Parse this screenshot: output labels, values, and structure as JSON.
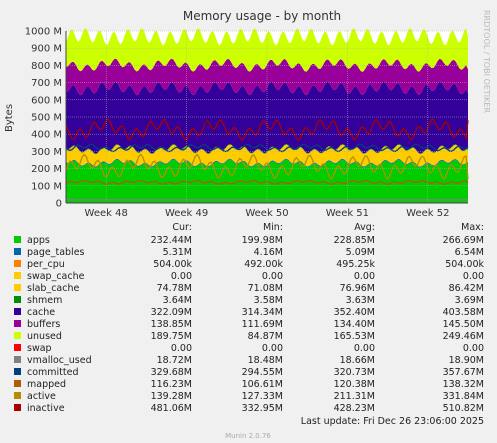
{
  "chart_data": {
    "type": "area",
    "title": "Memory usage - by month",
    "ylabel": "Bytes",
    "ylim": [
      0,
      1000000000
    ],
    "y_ticks": [
      {
        "value": 0,
        "label": "0"
      },
      {
        "value": 100000000,
        "label": "100 M"
      },
      {
        "value": 200000000,
        "label": "200 M"
      },
      {
        "value": 300000000,
        "label": "300 M"
      },
      {
        "value": 400000000,
        "label": "400 M"
      },
      {
        "value": 500000000,
        "label": "500 M"
      },
      {
        "value": 600000000,
        "label": "600 M"
      },
      {
        "value": 700000000,
        "label": "700 M"
      },
      {
        "value": 800000000,
        "label": "800 M"
      },
      {
        "value": 900000000,
        "label": "900 M"
      },
      {
        "value": 1000000000,
        "label": "1000 M"
      }
    ],
    "x_ticks": [
      "Week 48",
      "Week 49",
      "Week 50",
      "Week 51",
      "Week 52"
    ],
    "grid": true,
    "stack_order": [
      "apps",
      "page_tables",
      "per_cpu",
      "swap_cache",
      "slab_cache",
      "shmem",
      "cache",
      "buffers",
      "unused",
      "swap"
    ],
    "line_series": [
      "vmalloc_used",
      "committed",
      "mapped",
      "active",
      "inactive"
    ],
    "columns": [
      "Cur:",
      "Min:",
      "Avg:",
      "Max:"
    ],
    "series": [
      {
        "name": "apps",
        "color": "#00cc00",
        "cur": "232.44M",
        "min": "199.98M",
        "avg": "228.85M",
        "max": "266.69M"
      },
      {
        "name": "page_tables",
        "color": "#0066b3",
        "cur": "5.31M",
        "min": "4.16M",
        "avg": "5.09M",
        "max": "6.54M"
      },
      {
        "name": "per_cpu",
        "color": "#ff8000",
        "cur": "504.00k",
        "min": "492.00k",
        "avg": "495.25k",
        "max": "504.00k"
      },
      {
        "name": "swap_cache",
        "color": "#ffcc00",
        "cur": "0.00",
        "min": "0.00",
        "avg": "0.00",
        "max": "0.00"
      },
      {
        "name": "slab_cache",
        "color": "#ffcc00",
        "cur": "74.78M",
        "min": "71.08M",
        "avg": "76.96M",
        "max": "86.42M"
      },
      {
        "name": "shmem",
        "color": "#008f00",
        "cur": "3.64M",
        "min": "3.58M",
        "avg": "3.63M",
        "max": "3.69M"
      },
      {
        "name": "cache",
        "color": "#330099",
        "cur": "322.09M",
        "min": "314.34M",
        "avg": "352.40M",
        "max": "403.58M"
      },
      {
        "name": "buffers",
        "color": "#990099",
        "cur": "138.85M",
        "min": "111.69M",
        "avg": "134.40M",
        "max": "145.50M"
      },
      {
        "name": "unused",
        "color": "#ccff00",
        "cur": "189.75M",
        "min": "84.87M",
        "avg": "165.53M",
        "max": "249.46M"
      },
      {
        "name": "swap",
        "color": "#ff0000",
        "cur": "0.00",
        "min": "0.00",
        "avg": "0.00",
        "max": "0.00"
      },
      {
        "name": "vmalloc_used",
        "color": "#808080",
        "cur": "18.72M",
        "min": "18.48M",
        "avg": "18.66M",
        "max": "18.90M"
      },
      {
        "name": "committed",
        "color": "#004080",
        "cur": "329.68M",
        "min": "294.55M",
        "avg": "320.73M",
        "max": "357.67M"
      },
      {
        "name": "mapped",
        "color": "#b35a00",
        "cur": "116.23M",
        "min": "106.61M",
        "avg": "120.38M",
        "max": "138.32M"
      },
      {
        "name": "active",
        "color": "#b38f00",
        "cur": "139.28M",
        "min": "127.33M",
        "avg": "211.31M",
        "max": "331.84M"
      },
      {
        "name": "inactive",
        "color": "#aa0000",
        "cur": "481.06M",
        "min": "332.95M",
        "avg": "428.23M",
        "max": "510.82M"
      }
    ],
    "footer_update": "Last update:  Fri Dec 26 23:06:00 2025",
    "footer_version": "Munin 2.0.76",
    "side_text": "RRDTOOL / TOBI OETIKER"
  }
}
